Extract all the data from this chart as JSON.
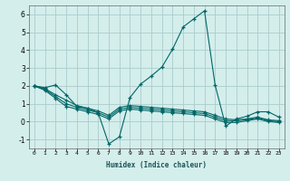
{
  "xlabel": "Humidex (Indice chaleur)",
  "background_color": "#d4eeec",
  "grid_color": "#aacccc",
  "line_color": "#006666",
  "x_ticks": [
    0,
    1,
    2,
    3,
    4,
    5,
    6,
    7,
    8,
    9,
    10,
    11,
    12,
    13,
    14,
    15,
    16,
    17,
    18,
    19,
    20,
    21,
    22,
    23
  ],
  "ylim": [
    -1.5,
    6.5
  ],
  "xlim": [
    -0.5,
    23.5
  ],
  "series1": {
    "x": [
      0,
      1,
      2,
      3,
      4,
      5,
      6,
      7,
      8,
      9,
      10,
      11,
      12,
      13,
      14,
      15,
      16,
      17,
      18,
      19,
      20,
      21,
      22,
      23
    ],
    "y": [
      2.0,
      1.9,
      2.05,
      1.5,
      0.85,
      0.75,
      0.5,
      -1.25,
      -0.85,
      1.35,
      2.1,
      2.55,
      3.05,
      4.05,
      5.3,
      5.75,
      6.2,
      2.05,
      -0.25,
      0.15,
      0.3,
      0.55,
      0.55,
      0.25
    ]
  },
  "series2": {
    "x": [
      0,
      1,
      2,
      3,
      4,
      5,
      6,
      7,
      8,
      9,
      10,
      11,
      12,
      13,
      14,
      15,
      16,
      17,
      18,
      19,
      20,
      21,
      22,
      23
    ],
    "y": [
      2.0,
      1.85,
      1.5,
      1.2,
      0.9,
      0.75,
      0.6,
      0.35,
      0.8,
      0.9,
      0.85,
      0.8,
      0.75,
      0.7,
      0.65,
      0.6,
      0.55,
      0.35,
      0.15,
      0.1,
      0.15,
      0.25,
      0.1,
      0.05
    ]
  },
  "series3": {
    "x": [
      0,
      1,
      2,
      3,
      4,
      5,
      6,
      7,
      8,
      9,
      10,
      11,
      12,
      13,
      14,
      15,
      16,
      17,
      18,
      19,
      20,
      21,
      22,
      23
    ],
    "y": [
      2.0,
      1.8,
      1.4,
      1.0,
      0.8,
      0.65,
      0.5,
      0.25,
      0.7,
      0.8,
      0.75,
      0.7,
      0.65,
      0.6,
      0.55,
      0.5,
      0.45,
      0.25,
      0.05,
      0.05,
      0.1,
      0.2,
      0.05,
      0.0
    ]
  },
  "series4": {
    "x": [
      0,
      1,
      2,
      3,
      4,
      5,
      6,
      7,
      8,
      9,
      10,
      11,
      12,
      13,
      14,
      15,
      16,
      17,
      18,
      19,
      20,
      21,
      22,
      23
    ],
    "y": [
      2.0,
      1.75,
      1.3,
      0.85,
      0.7,
      0.55,
      0.4,
      0.15,
      0.6,
      0.7,
      0.65,
      0.6,
      0.55,
      0.5,
      0.45,
      0.4,
      0.35,
      0.15,
      -0.05,
      -0.05,
      0.05,
      0.15,
      0.0,
      -0.05
    ]
  },
  "yticks": [
    -1,
    0,
    1,
    2,
    3,
    4,
    5,
    6
  ],
  "xtick_labels": [
    "0",
    "1",
    "2",
    "3",
    "4",
    "5",
    "6",
    "7",
    "8",
    "9",
    "10",
    "11",
    "12",
    "13",
    "14",
    "15",
    "16",
    "17",
    "18",
    "19",
    "20",
    "21",
    "22",
    "23"
  ]
}
